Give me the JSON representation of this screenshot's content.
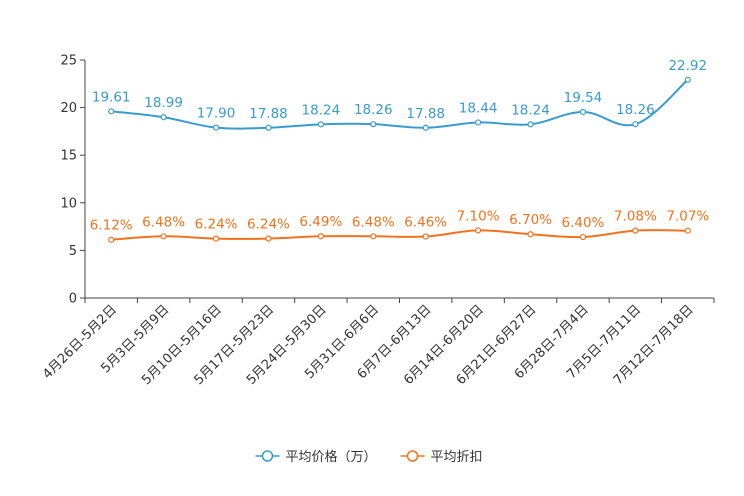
{
  "chart_data": {
    "type": "line",
    "categories": [
      "4月26日-5月2日",
      "5月3日-5月9日",
      "5月10日-5月16日",
      "5月17日-5月23日",
      "5月24日-5月30日",
      "5月31日-6月6日",
      "6月7日-6月13日",
      "6月14日-6月20日",
      "6月21日-6月27日",
      "6月28日-7月4日",
      "7月5日-7月11日",
      "7月12日-7月18日"
    ],
    "series": [
      {
        "name": "平均价格（万）",
        "color": "#3a9bcf",
        "values": [
          19.61,
          18.99,
          17.9,
          17.88,
          18.24,
          18.26,
          17.88,
          18.44,
          18.24,
          19.54,
          18.26,
          22.92
        ],
        "labels": [
          "19.61",
          "18.99",
          "17.90",
          "17.88",
          "18.24",
          "18.26",
          "17.88",
          "18.44",
          "18.24",
          "19.54",
          "18.26",
          "22.92"
        ]
      },
      {
        "name": "平均折扣",
        "color": "#f0731f",
        "values": [
          6.12,
          6.48,
          6.24,
          6.24,
          6.49,
          6.48,
          6.46,
          7.1,
          6.7,
          6.4,
          7.08,
          7.07
        ],
        "labels": [
          "6.12%",
          "6.48%",
          "6.24%",
          "6.24%",
          "6.49%",
          "6.48%",
          "6.46%",
          "7.10%",
          "6.70%",
          "6.40%",
          "7.08%",
          "7.07%"
        ]
      }
    ],
    "ylim": [
      0,
      25
    ],
    "yticks": [
      0,
      5,
      10,
      15,
      20,
      25
    ],
    "ytick_labels": [
      "0",
      "5",
      "10",
      "15",
      "20",
      "25"
    ],
    "grid": false,
    "legend": "bottom-center",
    "title": "",
    "xlabel": "",
    "ylabel": ""
  }
}
